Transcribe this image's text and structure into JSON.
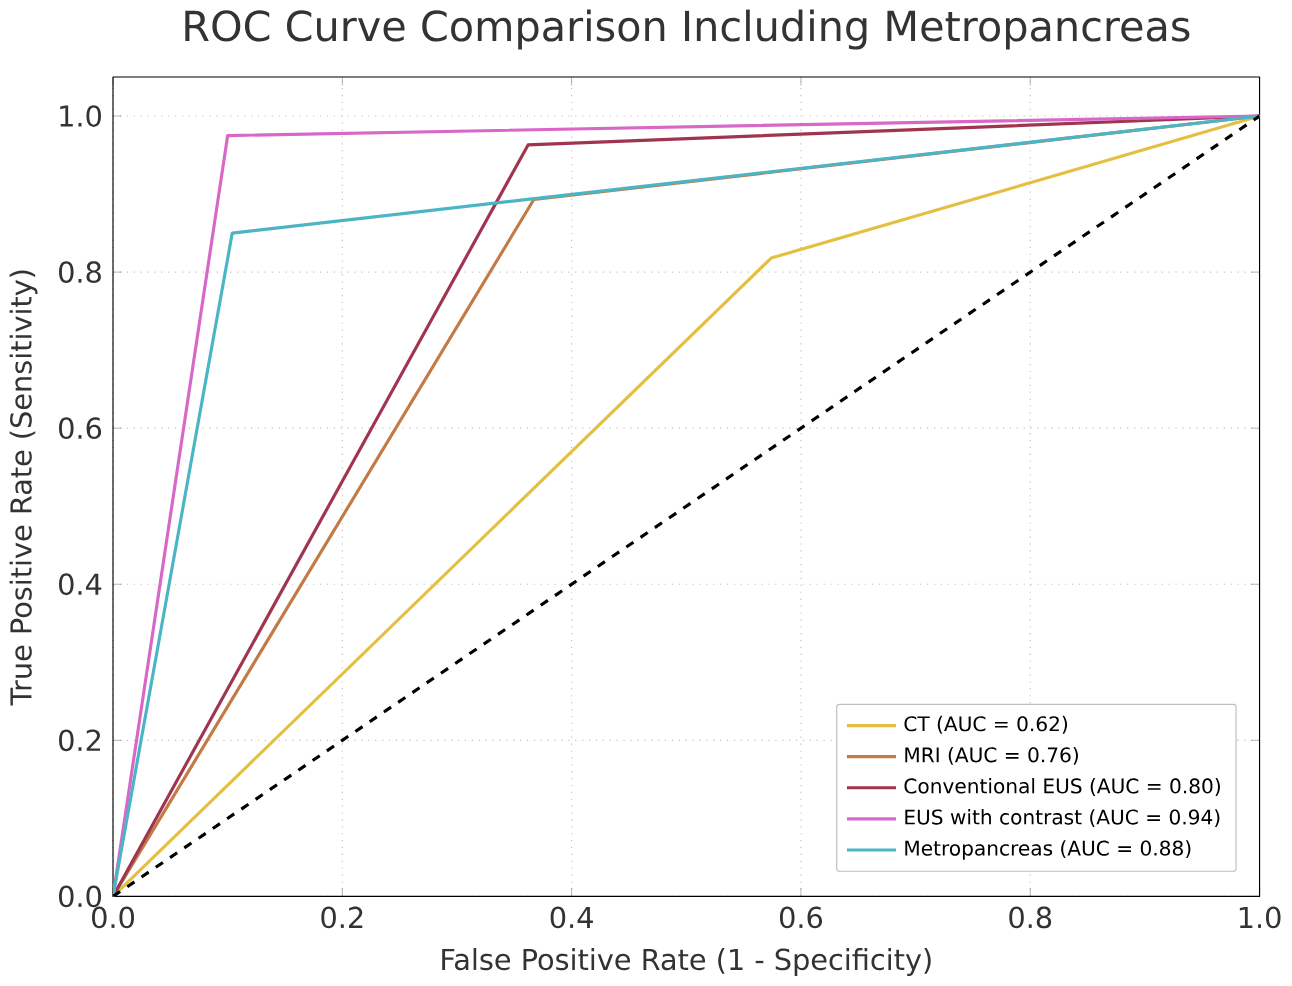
{
  "chart_data": {
    "type": "line",
    "title": "ROC Curve Comparison Including Metropancreas",
    "xlabel": "False Positive Rate (1 - Specificity)",
    "ylabel": "True Positive Rate (Sensitivity)",
    "xlim": [
      0,
      1
    ],
    "ylim": [
      0,
      1.05
    ],
    "xticks": [
      {
        "value": 0,
        "label": "0.0"
      },
      {
        "value": 0.2,
        "label": "0.2"
      },
      {
        "value": 0.4,
        "label": "0.4"
      },
      {
        "value": 0.6,
        "label": "0.6"
      },
      {
        "value": 0.8,
        "label": "0.8"
      },
      {
        "value": 1,
        "label": "1.0"
      }
    ],
    "yticks": [
      {
        "value": 0,
        "label": "0.0"
      },
      {
        "value": 0.2,
        "label": "0.2"
      },
      {
        "value": 0.4,
        "label": "0.4"
      },
      {
        "value": 0.6,
        "label": "0.6"
      },
      {
        "value": 0.8,
        "label": "0.8"
      },
      {
        "value": 1,
        "label": "1.0"
      }
    ],
    "grid": true,
    "legend": "bottom right",
    "marker": "none",
    "series": [
      {
        "name": "CT (AUC = 0.62)",
        "color": "#e3c042",
        "x": [
          0,
          0.574,
          1
        ],
        "values": [
          0,
          0.818,
          1
        ]
      },
      {
        "name": "MRI (AUC = 0.76)",
        "color": "#c47a45",
        "x": [
          0,
          0.367,
          1
        ],
        "values": [
          0,
          0.893,
          1
        ]
      },
      {
        "name": "Conventional EUS (AUC = 0.80)",
        "color": "#a03550",
        "x": [
          0,
          0.362,
          1
        ],
        "values": [
          0,
          0.963,
          1
        ]
      },
      {
        "name": "EUS with contrast (AUC = 0.94)",
        "color": "#d868c8",
        "x": [
          0,
          0.1,
          1
        ],
        "values": [
          0,
          0.975,
          1
        ]
      },
      {
        "name": "Metropancreas (AUC = 0.88)",
        "color": "#4cb5c5",
        "x": [
          0,
          0.104,
          1
        ],
        "values": [
          0,
          0.85,
          1
        ]
      },
      {
        "color": "#000000",
        "x": [
          0,
          1
        ],
        "values": [
          0,
          1
        ],
        "line_style": "dashed"
      }
    ]
  }
}
